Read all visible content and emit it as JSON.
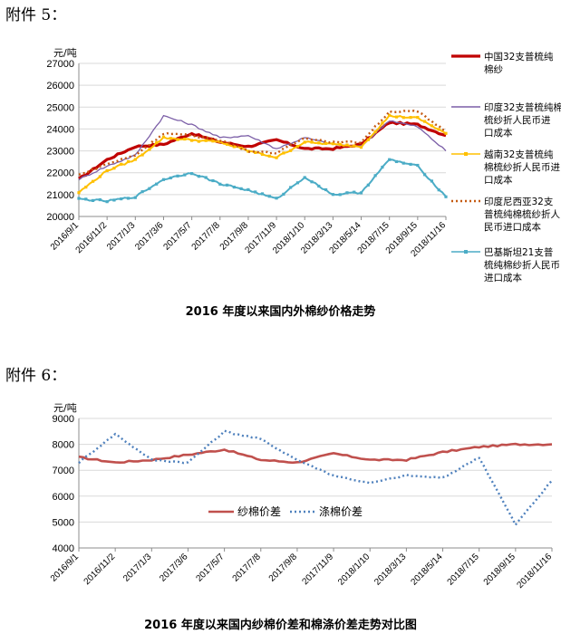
{
  "attachments": {
    "a5_label": "附件 5：",
    "a6_label": "附件 6："
  },
  "chart_data": [
    {
      "type": "line",
      "title": "2016 年度以来国内外棉纱价格走势",
      "ylabel": "元/吨",
      "ylim": [
        20000,
        27000
      ],
      "yticks": [
        27000,
        26000,
        25000,
        24000,
        23000,
        22000,
        21000,
        20000
      ],
      "categories": [
        "2016/9/1",
        "2016/11/2",
        "2017/1/3",
        "2017/3/6",
        "2017/5/7",
        "2017/7/8",
        "2017/9/8",
        "2017/11/9",
        "2018/1/10",
        "2018/3/13",
        "2018/5/14",
        "2018/7/15",
        "2018/9/15",
        "2018/11/16"
      ],
      "legend_position": "right",
      "series": [
        {
          "name": "中国32支普梳纯棉纱",
          "color": "#c00000",
          "style": "thick",
          "values": [
            21700,
            22600,
            23200,
            23300,
            23800,
            23400,
            23200,
            23500,
            23100,
            23100,
            23300,
            24300,
            24200,
            23700
          ]
        },
        {
          "name": "印度32支普梳纯棉梳纱折人民币进口成本",
          "color": "#7b5ea7",
          "style": "thin",
          "values": [
            21700,
            22300,
            22800,
            24600,
            24200,
            23600,
            23700,
            23100,
            23600,
            23300,
            23200,
            24400,
            24100,
            23000
          ]
        },
        {
          "name": "越南32支普梳纯棉梳纱折人民币进口成本",
          "color": "#ffc000",
          "style": "marker",
          "values": [
            21100,
            22100,
            22600,
            23600,
            23500,
            23400,
            23000,
            22700,
            23400,
            23300,
            23200,
            24600,
            24500,
            23800
          ]
        },
        {
          "name": "印度尼西亚32支普梳纯棉梳纱折人民币进口成本",
          "color": "#c55a11",
          "style": "dotted",
          "values": [
            21900,
            22400,
            22800,
            23800,
            23700,
            23500,
            23000,
            22900,
            23600,
            23400,
            23400,
            24800,
            24800,
            23900
          ]
        },
        {
          "name": "巴基斯坦21支普梳纯棉纱折人民币进口成本",
          "color": "#4bacc6",
          "style": "marker",
          "values": [
            20800,
            20700,
            20900,
            21700,
            22000,
            21500,
            21200,
            20800,
            21800,
            21000,
            21100,
            22600,
            22300,
            20900
          ]
        }
      ]
    },
    {
      "type": "line",
      "title": "2016 年度以来国内纱棉价差和棉涤价差走势对比图",
      "ylabel": "元/吨",
      "ylim": [
        4000,
        9000
      ],
      "yticks": [
        9000,
        8000,
        7000,
        6000,
        5000,
        4000
      ],
      "categories": [
        "2016/9/1",
        "2016/11/2",
        "2017/1/3",
        "2017/3/6",
        "2017/5/7",
        "2017/7/8",
        "2017/9/8",
        "2017/11/9",
        "2018/1/10",
        "2018/3/13",
        "2018/5/14",
        "2018/7/15",
        "2018/9/15",
        "2018/11/16"
      ],
      "legend_position": "center-left",
      "series": [
        {
          "name": "纱棉价差",
          "color": "#c0504d",
          "style": "solid",
          "values": [
            7500,
            7300,
            7400,
            7600,
            7800,
            7400,
            7300,
            7650,
            7400,
            7400,
            7700,
            7900,
            8000,
            8000
          ]
        },
        {
          "name": "涤棉价差",
          "color": "#4f81bd",
          "style": "dotted",
          "values": [
            7300,
            8400,
            7400,
            7300,
            8500,
            8200,
            7400,
            6800,
            6500,
            6800,
            6700,
            7500,
            4900,
            6600
          ]
        }
      ]
    }
  ]
}
